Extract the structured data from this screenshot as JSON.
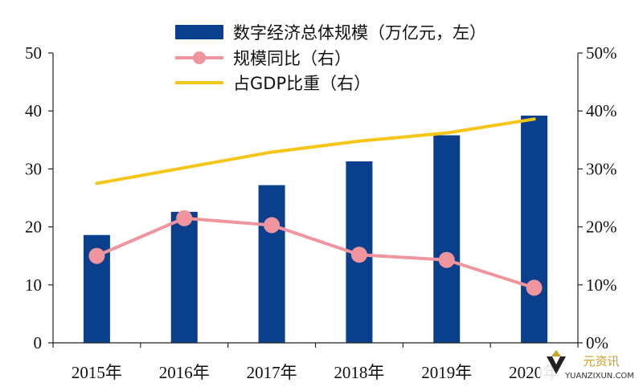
{
  "chart_data": {
    "type": "bar",
    "categories": [
      "2015年",
      "2016年",
      "2017年",
      "2018年",
      "2019年",
      "2020年"
    ],
    "series": [
      {
        "name": "数字经济总体规模（万亿元，左）",
        "type": "bar",
        "axis": "left",
        "values": [
          18.6,
          22.6,
          27.2,
          31.3,
          35.8,
          39.2
        ],
        "color": "#0a3f8c"
      },
      {
        "name": "规模同比（右）",
        "type": "line",
        "axis": "right",
        "markers": true,
        "values": [
          0.15,
          0.215,
          0.203,
          0.152,
          0.143,
          0.095
        ],
        "color": "#f0949d"
      },
      {
        "name": "占GDP比重（右）",
        "type": "line",
        "axis": "right",
        "markers": false,
        "values": [
          0.275,
          0.302,
          0.329,
          0.348,
          0.362,
          0.386
        ],
        "color": "#f5c518"
      }
    ],
    "left_axis": {
      "ylim": [
        0,
        50
      ],
      "ticks": [
        "0",
        "10",
        "20",
        "30",
        "40",
        "50"
      ]
    },
    "right_axis": {
      "ylim": [
        0,
        0.5
      ],
      "ticks": [
        "0%",
        "10%",
        "20%",
        "30%",
        "40%",
        "50%"
      ]
    },
    "grid": false,
    "legend_position": "top"
  },
  "watermark": {
    "cn": "元资讯",
    "en": "YUANZIXUN.COM"
  }
}
